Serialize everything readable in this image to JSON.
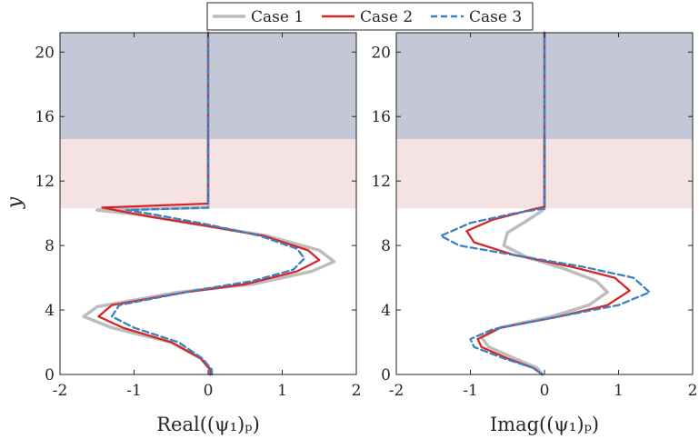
{
  "legend": {
    "entries": [
      {
        "label": "Case 1",
        "color": "#bdbdbd",
        "dash": "solid"
      },
      {
        "label": "Case 2",
        "color": "#d62728",
        "dash": "solid"
      },
      {
        "label": "Case 3",
        "color": "#3b82c4",
        "dash": "dashed"
      }
    ]
  },
  "colors": {
    "band_upper": "#c3c7d6",
    "band_lower": "#f5e3e4"
  },
  "chart_data": [
    {
      "type": "line",
      "xlabel": "Real((ψ₁)ₚ)",
      "ylabel": "y",
      "xlim": [
        -2,
        2
      ],
      "ylim": [
        0,
        21.2
      ],
      "xticks": [
        "-2",
        "-1",
        "0",
        "1",
        "2"
      ],
      "yticks": [
        "0",
        "4",
        "8",
        "12",
        "16",
        "20"
      ],
      "ytick_values": [
        0,
        4,
        8,
        12,
        16,
        20
      ],
      "xtick_values": [
        -2,
        -1,
        0,
        1,
        2
      ],
      "bands": [
        {
          "y0": 10.3,
          "y1": 14.6,
          "color": "#f5e3e4"
        },
        {
          "y0": 14.6,
          "y1": 21.2,
          "color": "#c3c7d6"
        }
      ],
      "series": [
        {
          "name": "Case 1",
          "points": [
            [
              0.02,
              0
            ],
            [
              0.03,
              0.3
            ],
            [
              -0.1,
              1.0
            ],
            [
              -0.5,
              2.0
            ],
            [
              -1.3,
              2.9
            ],
            [
              -1.68,
              3.6
            ],
            [
              -1.5,
              4.2
            ],
            [
              -0.4,
              5.1
            ],
            [
              0.6,
              5.6
            ],
            [
              1.4,
              6.4
            ],
            [
              1.7,
              7.0
            ],
            [
              1.5,
              7.7
            ],
            [
              0.8,
              8.6
            ],
            [
              0,
              9.2
            ],
            [
              -0.9,
              9.9
            ],
            [
              -1.5,
              10.2
            ],
            [
              0,
              10.35
            ],
            [
              0,
              21.2
            ]
          ]
        },
        {
          "name": "Case 2",
          "points": [
            [
              0.03,
              0
            ],
            [
              0.03,
              0.3
            ],
            [
              -0.1,
              1.0
            ],
            [
              -0.5,
              2.0
            ],
            [
              -1.15,
              2.9
            ],
            [
              -1.48,
              3.6
            ],
            [
              -1.3,
              4.3
            ],
            [
              -0.3,
              5.1
            ],
            [
              0.5,
              5.6
            ],
            [
              1.2,
              6.4
            ],
            [
              1.5,
              7.1
            ],
            [
              1.35,
              7.7
            ],
            [
              0.75,
              8.6
            ],
            [
              0,
              9.2
            ],
            [
              -0.8,
              9.8
            ],
            [
              -1.43,
              10.35
            ],
            [
              0,
              10.6
            ],
            [
              0,
              21.2
            ]
          ]
        },
        {
          "name": "Case 3",
          "points": [
            [
              0.05,
              0
            ],
            [
              0.05,
              0.3
            ],
            [
              -0.08,
              1.0
            ],
            [
              -0.4,
              2.0
            ],
            [
              -1.0,
              2.9
            ],
            [
              -1.3,
              3.6
            ],
            [
              -1.2,
              4.3
            ],
            [
              -0.2,
              5.2
            ],
            [
              0.6,
              5.8
            ],
            [
              1.15,
              6.5
            ],
            [
              1.3,
              7.2
            ],
            [
              1.2,
              7.8
            ],
            [
              0.7,
              8.6
            ],
            [
              0,
              9.3
            ],
            [
              -0.7,
              9.9
            ],
            [
              -1.1,
              10.2
            ],
            [
              0,
              10.35
            ],
            [
              0,
              21.2
            ]
          ]
        }
      ]
    },
    {
      "type": "line",
      "xlabel": "Imag((ψ₁)ₚ)",
      "ylabel": "",
      "xlim": [
        -2,
        2
      ],
      "ylim": [
        0,
        21.2
      ],
      "xticks": [
        "-2",
        "-1",
        "0",
        "1",
        "2"
      ],
      "yticks": [
        "0",
        "4",
        "8",
        "12",
        "16",
        "20"
      ],
      "ytick_values": [
        0,
        4,
        8,
        12,
        16,
        20
      ],
      "xtick_values": [
        -2,
        -1,
        0,
        1,
        2
      ],
      "bands": [
        {
          "y0": 10.3,
          "y1": 14.6,
          "color": "#f5e3e4"
        },
        {
          "y0": 14.6,
          "y1": 21.2,
          "color": "#c3c7d6"
        }
      ],
      "series": [
        {
          "name": "Case 1",
          "points": [
            [
              -0.03,
              0
            ],
            [
              -0.1,
              0.4
            ],
            [
              -0.4,
              1.0
            ],
            [
              -0.75,
              1.7
            ],
            [
              -0.85,
              2.3
            ],
            [
              -0.6,
              2.9
            ],
            [
              0.1,
              3.6
            ],
            [
              0.6,
              4.3
            ],
            [
              0.85,
              5.1
            ],
            [
              0.7,
              5.8
            ],
            [
              0.3,
              6.5
            ],
            [
              -0.25,
              7.3
            ],
            [
              -0.55,
              8.0
            ],
            [
              -0.5,
              8.8
            ],
            [
              -0.25,
              9.5
            ],
            [
              -0.05,
              10.1
            ],
            [
              0,
              10.3
            ],
            [
              0,
              21.2
            ]
          ]
        },
        {
          "name": "Case 2",
          "points": [
            [
              -0.03,
              0
            ],
            [
              -0.15,
              0.4
            ],
            [
              -0.5,
              1.0
            ],
            [
              -0.85,
              1.7
            ],
            [
              -0.9,
              2.2
            ],
            [
              -0.6,
              2.9
            ],
            [
              0.2,
              3.6
            ],
            [
              0.85,
              4.3
            ],
            [
              1.15,
              5.2
            ],
            [
              0.95,
              6.0
            ],
            [
              0.35,
              6.7
            ],
            [
              -0.4,
              7.4
            ],
            [
              -0.95,
              8.2
            ],
            [
              -1.05,
              8.9
            ],
            [
              -0.7,
              9.6
            ],
            [
              -0.2,
              10.2
            ],
            [
              0,
              10.4
            ],
            [
              0,
              21.2
            ]
          ]
        },
        {
          "name": "Case 3",
          "points": [
            [
              -0.03,
              0
            ],
            [
              -0.15,
              0.4
            ],
            [
              -0.55,
              1.0
            ],
            [
              -0.95,
              1.7
            ],
            [
              -1.0,
              2.2
            ],
            [
              -0.7,
              2.8
            ],
            [
              0.2,
              3.6
            ],
            [
              1.0,
              4.3
            ],
            [
              1.42,
              5.1
            ],
            [
              1.2,
              6.0
            ],
            [
              0.5,
              6.7
            ],
            [
              -0.4,
              7.4
            ],
            [
              -1.15,
              8.0
            ],
            [
              -1.4,
              8.6
            ],
            [
              -1.0,
              9.4
            ],
            [
              -0.4,
              10.0
            ],
            [
              0,
              10.3
            ],
            [
              0,
              21.2
            ]
          ]
        }
      ]
    }
  ]
}
